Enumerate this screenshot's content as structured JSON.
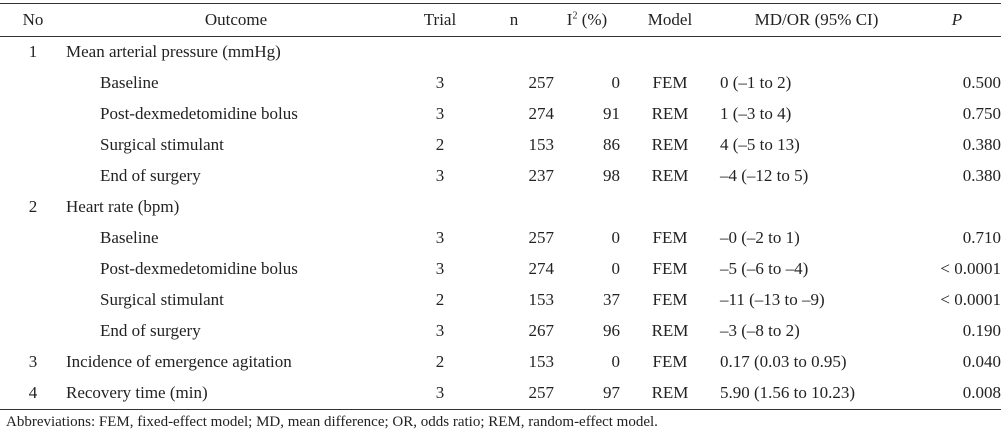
{
  "headers": {
    "no": "No",
    "outcome": "Outcome",
    "trial": "Trial",
    "n": "n",
    "i2_base": "I",
    "i2_sup": "2",
    "i2_unit": " (%)",
    "model": "Model",
    "md": "MD/OR (95% CI)",
    "p": "P"
  },
  "rows": [
    {
      "no": "1",
      "outcome": "Mean arterial pressure (mmHg)",
      "trial": "",
      "n": "",
      "i2": "",
      "model": "",
      "md": "",
      "p": "",
      "sub": false
    },
    {
      "no": "",
      "outcome": "Baseline",
      "trial": "3",
      "n": "257",
      "i2": "0",
      "model": "FEM",
      "md": "0 (–1 to 2)",
      "p": "0.500",
      "sub": true
    },
    {
      "no": "",
      "outcome": "Post-dexmedetomidine bolus",
      "trial": "3",
      "n": "274",
      "i2": "91",
      "model": "REM",
      "md": "1 (–3 to 4)",
      "p": "0.750",
      "sub": true
    },
    {
      "no": "",
      "outcome": "Surgical stimulant",
      "trial": "2",
      "n": "153",
      "i2": "86",
      "model": "REM",
      "md": "4 (–5 to 13)",
      "p": "0.380",
      "sub": true
    },
    {
      "no": "",
      "outcome": "End of surgery",
      "trial": "3",
      "n": "237",
      "i2": "98",
      "model": "REM",
      "md": "–4 (–12 to 5)",
      "p": "0.380",
      "sub": true
    },
    {
      "no": "2",
      "outcome": "Heart rate (bpm)",
      "trial": "",
      "n": "",
      "i2": "",
      "model": "",
      "md": "",
      "p": "",
      "sub": false
    },
    {
      "no": "",
      "outcome": "Baseline",
      "trial": "3",
      "n": "257",
      "i2": "0",
      "model": "FEM",
      "md": "–0 (–2 to 1)",
      "p": "0.710",
      "sub": true
    },
    {
      "no": "",
      "outcome": "Post-dexmedetomidine bolus",
      "trial": "3",
      "n": "274",
      "i2": "0",
      "model": "FEM",
      "md": "–5 (–6 to –4)",
      "p": "< 0.0001",
      "sub": true
    },
    {
      "no": "",
      "outcome": "Surgical stimulant",
      "trial": "2",
      "n": "153",
      "i2": "37",
      "model": "FEM",
      "md": "–11 (–13 to –9)",
      "p": "< 0.0001",
      "sub": true
    },
    {
      "no": "",
      "outcome": "End of surgery",
      "trial": "3",
      "n": "267",
      "i2": "96",
      "model": "REM",
      "md": "–3 (–8 to 2)",
      "p": "0.190",
      "sub": true
    },
    {
      "no": "3",
      "outcome": "Incidence of emergence agitation",
      "trial": "2",
      "n": "153",
      "i2": "0",
      "model": "FEM",
      "md": "0.17 (0.03 to 0.95)",
      "p": "0.040",
      "sub": false
    },
    {
      "no": "4",
      "outcome": "Recovery time (min)",
      "trial": "3",
      "n": "257",
      "i2": "97",
      "model": "REM",
      "md": "5.90 (1.56 to 10.23)",
      "p": "0.008",
      "sub": false
    }
  ],
  "footnote": "Abbreviations: FEM, fixed-effect model; MD, mean difference; OR, odds ratio; REM, random-effect model."
}
